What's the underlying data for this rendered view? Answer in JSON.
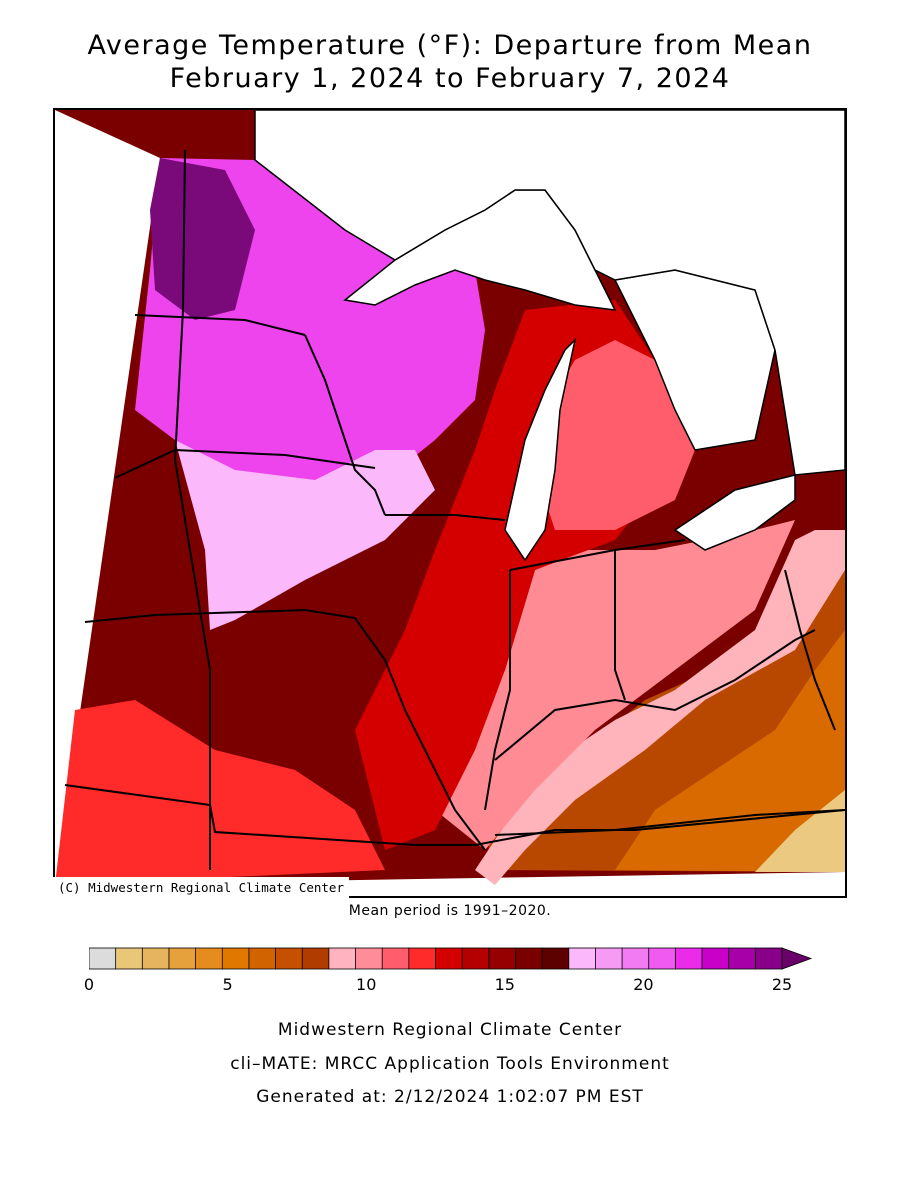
{
  "title": {
    "line1": "Average Temperature (°F): Departure from Mean",
    "line2": "February 1, 2024 to February 7, 2024"
  },
  "map": {
    "credit": "(C) Midwestern Regional Climate Center",
    "region_colors": {
      "deep_purple": "#7a0a7a",
      "purple": "#c400c4",
      "magenta": "#ee44ee",
      "light_magenta": "#f590f5",
      "pale_pink": "#fbb8fb",
      "dark_red": "#7a0000",
      "red_dark": "#a00000",
      "red": "#d40000",
      "bright_red": "#ff2a2a",
      "salmon": "#ff5c6c",
      "light_salmon": "#ff8c95",
      "pink": "#ffb3ba",
      "brown": "#b84800",
      "orange": "#d86a00",
      "light_orange": "#e69a40",
      "tan": "#ebc980",
      "lake": "#ffffff"
    }
  },
  "mean_note": "Mean period is 1991–2020.",
  "legend": {
    "ticks": [
      "0",
      "5",
      "10",
      "15",
      "20",
      "25"
    ],
    "tick_values": [
      0,
      5,
      10,
      15,
      20,
      25
    ],
    "colors": [
      "#dcdcdc",
      "#e8c878",
      "#e6b45e",
      "#e6a13c",
      "#e68c1e",
      "#e07800",
      "#d26400",
      "#c45000",
      "#b03c00",
      "#ffb3c0",
      "#ff8c99",
      "#ff5c6c",
      "#ff2a2a",
      "#d40000",
      "#b40000",
      "#960000",
      "#7a0000",
      "#5c0000",
      "#fbb8fb",
      "#f59af5",
      "#f27af2",
      "#f05af0",
      "#ea2cea",
      "#c800c8",
      "#a800a8",
      "#880088"
    ],
    "overflow_color": "#6a006a"
  },
  "footer": {
    "line1": "Midwestern Regional Climate Center",
    "line2": "cli–MATE: MRCC Application Tools Environment",
    "line3": "Generated at: 2/12/2024 1:02:07 PM EST"
  }
}
